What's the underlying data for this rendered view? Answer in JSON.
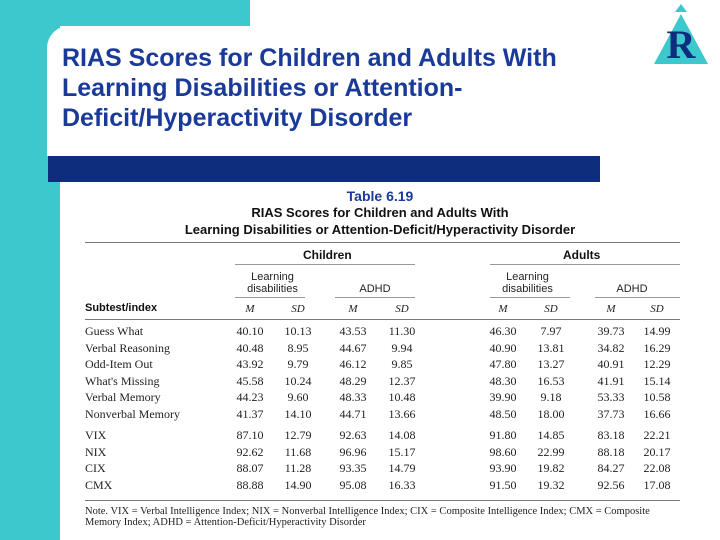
{
  "slide": {
    "title_lines": [
      "RIAS Scores for Children and Adults With",
      "Learning Disabilities or Attention-",
      "Deficit/Hyperactivity Disorder"
    ]
  },
  "colors": {
    "accent": "#3cc8cc",
    "title": "#1a3a9a",
    "bar": "#0f2d7d"
  },
  "logo": {
    "icon": "riverside-logo-icon",
    "letter": "R"
  },
  "table": {
    "number": "Table 6.19",
    "caption_line1": "RIAS Scores for Children and Adults With",
    "caption_line2": "Learning Disabilities or Attention-Deficit/Hyperactivity Disorder",
    "group_children": "Children",
    "group_adults": "Adults",
    "sub_ld_line1": "Learning",
    "sub_ld_line2": "disabilities",
    "sub_adhd": "ADHD",
    "row_header": "Subtest/index",
    "col_m": "M",
    "col_sd": "SD",
    "subtests": [
      {
        "name": "Guess What",
        "values": [
          "40.10",
          "10.13",
          "43.53",
          "11.30",
          "46.30",
          "7.97",
          "39.73",
          "14.99"
        ]
      },
      {
        "name": "Verbal Reasoning",
        "values": [
          "40.48",
          "8.95",
          "44.67",
          "9.94",
          "40.90",
          "13.81",
          "34.82",
          "16.29"
        ]
      },
      {
        "name": "Odd-Item Out",
        "values": [
          "43.92",
          "9.79",
          "46.12",
          "9.85",
          "47.80",
          "13.27",
          "40.91",
          "12.29"
        ]
      },
      {
        "name": "What's Missing",
        "values": [
          "45.58",
          "10.24",
          "48.29",
          "12.37",
          "48.30",
          "16.53",
          "41.91",
          "15.14"
        ]
      },
      {
        "name": "Verbal Memory",
        "values": [
          "44.23",
          "9.60",
          "48.33",
          "10.48",
          "39.90",
          "9.18",
          "53.33",
          "10.58"
        ]
      },
      {
        "name": "Nonverbal Memory",
        "values": [
          "41.37",
          "14.10",
          "44.71",
          "13.66",
          "48.50",
          "18.00",
          "37.73",
          "16.66"
        ]
      }
    ],
    "indexes": [
      {
        "name": "VIX",
        "values": [
          "87.10",
          "12.79",
          "92.63",
          "14.08",
          "91.80",
          "14.85",
          "83.18",
          "22.21"
        ]
      },
      {
        "name": "NIX",
        "values": [
          "92.62",
          "11.68",
          "96.96",
          "15.17",
          "98.60",
          "22.99",
          "88.18",
          "20.17"
        ]
      },
      {
        "name": "CIX",
        "values": [
          "88.07",
          "11.28",
          "93.35",
          "14.79",
          "93.90",
          "19.82",
          "84.27",
          "22.08"
        ]
      },
      {
        "name": "CMX",
        "values": [
          "88.88",
          "14.90",
          "95.08",
          "16.33",
          "91.50",
          "19.32",
          "92.56",
          "17.08"
        ]
      }
    ],
    "note_line1": "Note. VIX = Verbal Intelligence Index; NIX = Nonverbal Intelligence Index; CIX = Composite Intelligence Index; CMX = Composite",
    "note_line2": "Memory Index; ADHD = Attention-Deficit/Hyperactivity Disorder"
  }
}
